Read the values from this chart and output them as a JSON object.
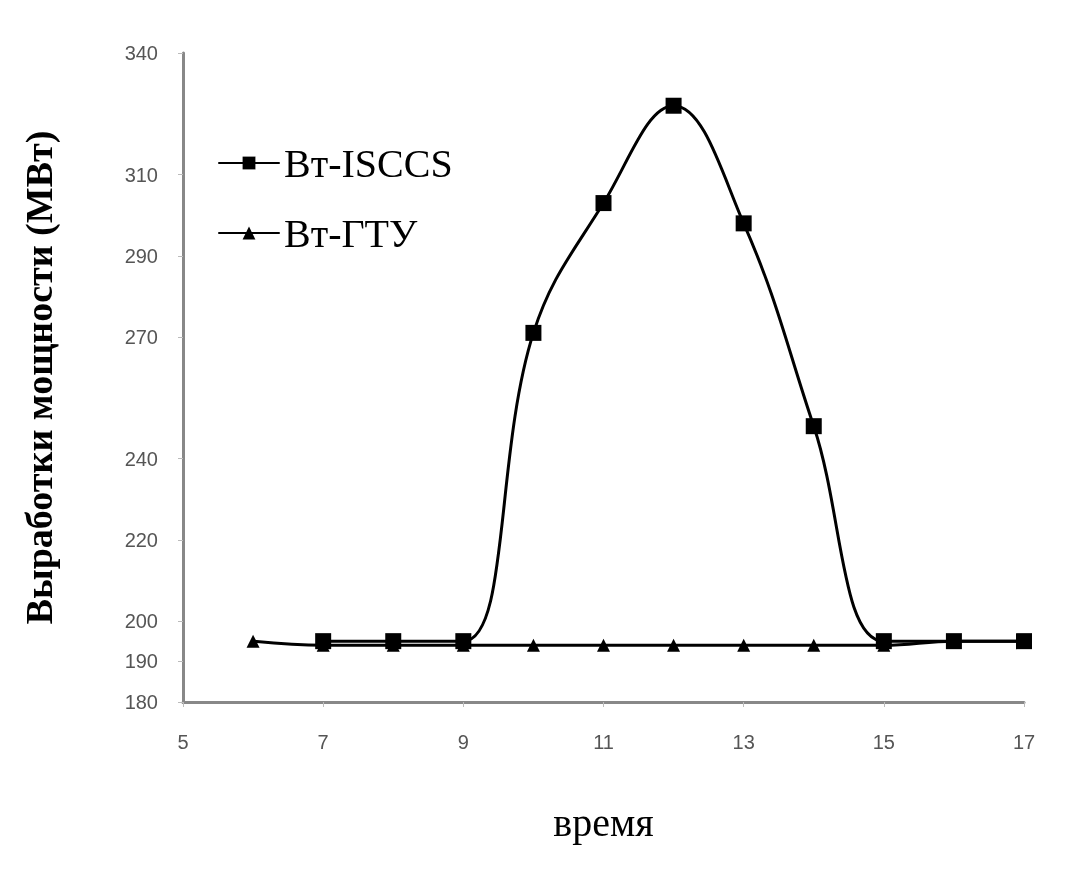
{
  "chart_data": {
    "type": "line",
    "xlabel": "время",
    "ylabel": "Выработки мощности (МВт)",
    "x": [
      6,
      7,
      8,
      9,
      10,
      11,
      12,
      13,
      14,
      15,
      16,
      17
    ],
    "series": [
      {
        "name": "Вт-ISCCS",
        "color": "#000000",
        "marker": "square",
        "x": [
          7,
          8,
          9,
          10,
          11,
          12,
          13,
          14,
          15,
          16,
          17
        ],
        "values": [
          195,
          195,
          195,
          271,
          303,
          327,
          298,
          248,
          195,
          195,
          195
        ]
      },
      {
        "name": "Вт-ГТУ",
        "color": "#000000",
        "marker": "triangle",
        "values": [
          195,
          194,
          194,
          194,
          194,
          194,
          194,
          194,
          194,
          194,
          195,
          195
        ]
      }
    ],
    "xlim": [
      5,
      17
    ],
    "xticks": [
      5,
      7,
      9,
      11,
      13,
      15,
      17
    ],
    "ylim": [
      180,
      340
    ],
    "yticks": [
      180,
      190,
      200,
      220,
      240,
      270,
      290,
      310,
      340
    ],
    "grid": false,
    "legend": "top left",
    "line_style": "solid"
  }
}
